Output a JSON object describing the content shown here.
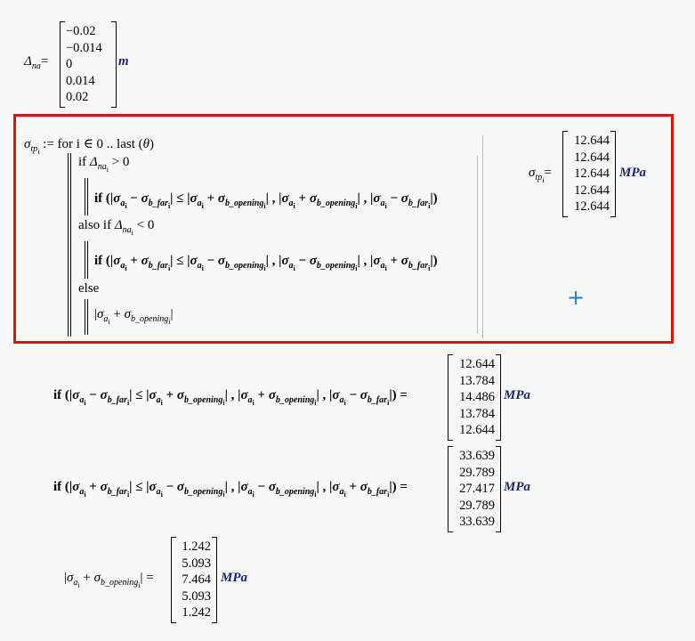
{
  "delta_na": {
    "label": "Δ_{na}=",
    "values": [
      "−0.02",
      "−0.014",
      "0",
      "0.014",
      "0.02"
    ],
    "unit": "m"
  },
  "program": {
    "header": "σ_{tp_{i}} := for  i ∈ 0 .. last (θ)",
    "line_if": "if  Δ_{na_{i}} > 0",
    "line_if_body": "if (|σ_{a_{i}} − σ_{b_far_{i}}| ≤ |σ_{a_{i}} + σ_{b_opening_{i}}| , |σ_{a_{i}} + σ_{b_opening_{i}}| , |σ_{a_{i}} − σ_{b_far_{i}}|)",
    "line_also_if": "also if  Δ_{na_{i}} < 0",
    "line_also_body": "if (|σ_{a_{i}} + σ_{b_far_{i}}| ≤ |σ_{a_{i}} − σ_{b_opening_{i}}| , |σ_{a_{i}} − σ_{b_opening_{i}}| , |σ_{a_{i}} + σ_{b_far_{i}}|)",
    "line_else": "else",
    "line_else_body": "|σ_{a_{i}} + σ_{b_opening_{i}}|"
  },
  "sigma_tp_result": {
    "label": "σ_{tp_{i}}=",
    "values": [
      "12.644",
      "12.644",
      "12.644",
      "12.644",
      "12.644"
    ],
    "unit": "MPa"
  },
  "add_icon": "+",
  "eval1": {
    "expr": "if (|σ_{a_{i}} − σ_{b_far_{i}}| ≤ |σ_{a_{i}} + σ_{b_opening_{i}}| , |σ_{a_{i}} + σ_{b_opening_{i}}| , |σ_{a_{i}} − σ_{b_far_{i}}|) =",
    "values": [
      "12.644",
      "13.784",
      "14.486",
      "13.784",
      "12.644"
    ],
    "unit": "MPa"
  },
  "eval2": {
    "expr": "if (|σ_{a_{i}} + σ_{b_far_{i}}| ≤ |σ_{a_{i}} − σ_{b_opening_{i}}| , |σ_{a_{i}} − σ_{b_opening_{i}}| , |σ_{a_{i}} + σ_{b_far_{i}}|) =",
    "values": [
      "33.639",
      "29.789",
      "27.417",
      "29.789",
      "33.639"
    ],
    "unit": "MPa"
  },
  "eval3": {
    "expr": "|σ_{a_{i}} + σ_{b_opening_{i}}| =",
    "values": [
      "1.242",
      "5.093",
      "7.464",
      "5.093",
      "1.242"
    ],
    "unit": "MPa"
  },
  "colors": {
    "highlight_border": "#e31010",
    "unit": "#1a237e",
    "add_icon": "#2080d0"
  }
}
